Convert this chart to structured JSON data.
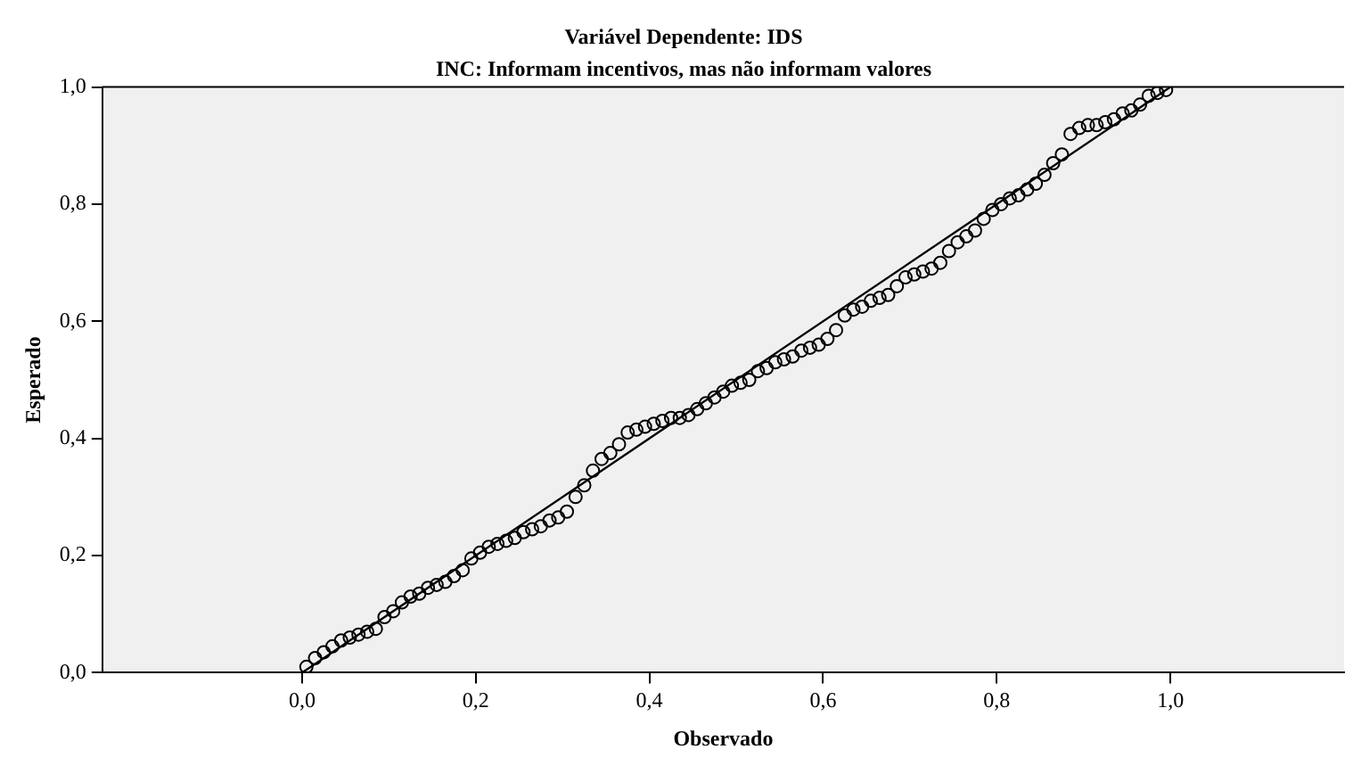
{
  "chart_data": {
    "type": "scatter",
    "title": "Variável Dependente: IDS",
    "subtitle": "INC: Informam incentivos, mas não informam valores",
    "xlabel": "Observado",
    "ylabel": "Esperado",
    "xlim": [
      -0.23,
      1.2
    ],
    "ylim": [
      0,
      1
    ],
    "xticks": [
      {
        "value": 0,
        "label": "0,0"
      },
      {
        "value": 0.2,
        "label": "0,2"
      },
      {
        "value": 0.4,
        "label": "0,4"
      },
      {
        "value": 0.6,
        "label": "0,6"
      },
      {
        "value": 0.8,
        "label": "0,8"
      },
      {
        "value": 1,
        "label": "1,0"
      }
    ],
    "yticks": [
      {
        "value": 0,
        "label": "0,0"
      },
      {
        "value": 0.2,
        "label": "0,2"
      },
      {
        "value": 0.4,
        "label": "0,4"
      },
      {
        "value": 0.6,
        "label": "0,6"
      },
      {
        "value": 0.8,
        "label": "0,8"
      },
      {
        "value": 1,
        "label": "1,0"
      }
    ],
    "grid": false,
    "legend": false,
    "series": [
      {
        "type": "scatter",
        "marker": "circle",
        "color": "#000000",
        "x": [
          0.005,
          0.015,
          0.025,
          0.035,
          0.045,
          0.055,
          0.065,
          0.075,
          0.085,
          0.095,
          0.105,
          0.115,
          0.125,
          0.135,
          0.145,
          0.155,
          0.165,
          0.175,
          0.185,
          0.195,
          0.205,
          0.215,
          0.225,
          0.235,
          0.245,
          0.255,
          0.265,
          0.275,
          0.285,
          0.295,
          0.305,
          0.315,
          0.325,
          0.335,
          0.345,
          0.355,
          0.365,
          0.375,
          0.385,
          0.395,
          0.405,
          0.415,
          0.425,
          0.435,
          0.445,
          0.455,
          0.465,
          0.475,
          0.485,
          0.495,
          0.505,
          0.515,
          0.525,
          0.535,
          0.545,
          0.555,
          0.565,
          0.575,
          0.585,
          0.595,
          0.605,
          0.615,
          0.625,
          0.635,
          0.645,
          0.655,
          0.665,
          0.675,
          0.685,
          0.695,
          0.705,
          0.715,
          0.725,
          0.735,
          0.745,
          0.755,
          0.765,
          0.775,
          0.785,
          0.795,
          0.805,
          0.815,
          0.825,
          0.835,
          0.845,
          0.855,
          0.865,
          0.875,
          0.885,
          0.895,
          0.905,
          0.915,
          0.925,
          0.935,
          0.945,
          0.955,
          0.965,
          0.975,
          0.985,
          0.995
        ],
        "values": [
          0.01,
          0.025,
          0.035,
          0.045,
          0.055,
          0.06,
          0.065,
          0.07,
          0.075,
          0.095,
          0.105,
          0.12,
          0.13,
          0.135,
          0.145,
          0.15,
          0.155,
          0.165,
          0.175,
          0.195,
          0.205,
          0.215,
          0.22,
          0.225,
          0.23,
          0.24,
          0.245,
          0.25,
          0.26,
          0.265,
          0.275,
          0.3,
          0.32,
          0.345,
          0.365,
          0.375,
          0.39,
          0.41,
          0.415,
          0.42,
          0.425,
          0.43,
          0.435,
          0.435,
          0.44,
          0.45,
          0.46,
          0.47,
          0.48,
          0.49,
          0.495,
          0.5,
          0.515,
          0.52,
          0.53,
          0.535,
          0.54,
          0.55,
          0.555,
          0.56,
          0.57,
          0.585,
          0.61,
          0.62,
          0.625,
          0.635,
          0.64,
          0.645,
          0.66,
          0.675,
          0.68,
          0.685,
          0.69,
          0.7,
          0.72,
          0.735,
          0.745,
          0.755,
          0.775,
          0.79,
          0.8,
          0.81,
          0.815,
          0.825,
          0.835,
          0.85,
          0.87,
          0.885,
          0.92,
          0.93,
          0.935,
          0.935,
          0.94,
          0.945,
          0.955,
          0.96,
          0.97,
          0.985,
          0.99,
          0.995
        ]
      },
      {
        "type": "line",
        "marker": "none",
        "line_style": "solid",
        "color": "#000000",
        "x": [
          0,
          1
        ],
        "values": [
          0,
          1
        ]
      }
    ]
  }
}
